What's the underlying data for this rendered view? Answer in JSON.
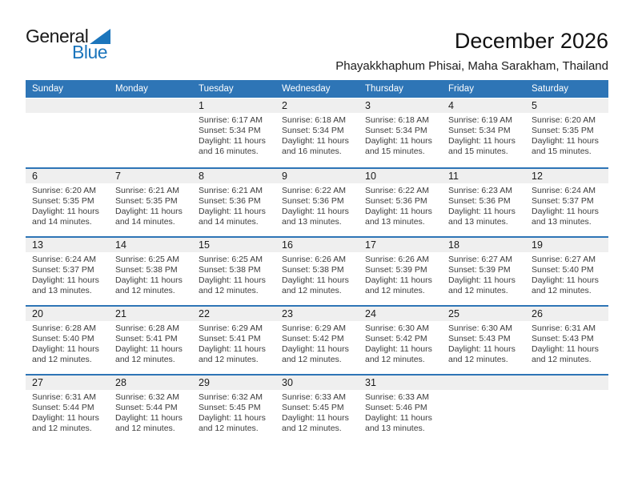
{
  "logo": {
    "part1": "General",
    "part2": "Blue"
  },
  "header": {
    "title": "December 2026",
    "subtitle": "Phayakkhaphum Phisai, Maha Sarakham, Thailand"
  },
  "weekdays": [
    "Sunday",
    "Monday",
    "Tuesday",
    "Wednesday",
    "Thursday",
    "Friday",
    "Saturday"
  ],
  "colors": {
    "header_bg": "#2E75B6",
    "row_divider": "#2E75B6",
    "date_strip_bg": "#EFEFEF",
    "logo_blue": "#1B75BC",
    "detail_text": "#3C3C3C"
  },
  "weeks": [
    {
      "cells": [
        {
          "day": "",
          "sunrise": "",
          "sunset": "",
          "daylight": ""
        },
        {
          "day": "",
          "sunrise": "",
          "sunset": "",
          "daylight": ""
        },
        {
          "day": "1",
          "sunrise": "Sunrise: 6:17 AM",
          "sunset": "Sunset: 5:34 PM",
          "daylight": "Daylight: 11 hours and 16 minutes."
        },
        {
          "day": "2",
          "sunrise": "Sunrise: 6:18 AM",
          "sunset": "Sunset: 5:34 PM",
          "daylight": "Daylight: 11 hours and 16 minutes."
        },
        {
          "day": "3",
          "sunrise": "Sunrise: 6:18 AM",
          "sunset": "Sunset: 5:34 PM",
          "daylight": "Daylight: 11 hours and 15 minutes."
        },
        {
          "day": "4",
          "sunrise": "Sunrise: 6:19 AM",
          "sunset": "Sunset: 5:34 PM",
          "daylight": "Daylight: 11 hours and 15 minutes."
        },
        {
          "day": "5",
          "sunrise": "Sunrise: 6:20 AM",
          "sunset": "Sunset: 5:35 PM",
          "daylight": "Daylight: 11 hours and 15 minutes."
        }
      ]
    },
    {
      "cells": [
        {
          "day": "6",
          "sunrise": "Sunrise: 6:20 AM",
          "sunset": "Sunset: 5:35 PM",
          "daylight": "Daylight: 11 hours and 14 minutes."
        },
        {
          "day": "7",
          "sunrise": "Sunrise: 6:21 AM",
          "sunset": "Sunset: 5:35 PM",
          "daylight": "Daylight: 11 hours and 14 minutes."
        },
        {
          "day": "8",
          "sunrise": "Sunrise: 6:21 AM",
          "sunset": "Sunset: 5:36 PM",
          "daylight": "Daylight: 11 hours and 14 minutes."
        },
        {
          "day": "9",
          "sunrise": "Sunrise: 6:22 AM",
          "sunset": "Sunset: 5:36 PM",
          "daylight": "Daylight: 11 hours and 13 minutes."
        },
        {
          "day": "10",
          "sunrise": "Sunrise: 6:22 AM",
          "sunset": "Sunset: 5:36 PM",
          "daylight": "Daylight: 11 hours and 13 minutes."
        },
        {
          "day": "11",
          "sunrise": "Sunrise: 6:23 AM",
          "sunset": "Sunset: 5:36 PM",
          "daylight": "Daylight: 11 hours and 13 minutes."
        },
        {
          "day": "12",
          "sunrise": "Sunrise: 6:24 AM",
          "sunset": "Sunset: 5:37 PM",
          "daylight": "Daylight: 11 hours and 13 minutes."
        }
      ]
    },
    {
      "cells": [
        {
          "day": "13",
          "sunrise": "Sunrise: 6:24 AM",
          "sunset": "Sunset: 5:37 PM",
          "daylight": "Daylight: 11 hours and 13 minutes."
        },
        {
          "day": "14",
          "sunrise": "Sunrise: 6:25 AM",
          "sunset": "Sunset: 5:38 PM",
          "daylight": "Daylight: 11 hours and 12 minutes."
        },
        {
          "day": "15",
          "sunrise": "Sunrise: 6:25 AM",
          "sunset": "Sunset: 5:38 PM",
          "daylight": "Daylight: 11 hours and 12 minutes."
        },
        {
          "day": "16",
          "sunrise": "Sunrise: 6:26 AM",
          "sunset": "Sunset: 5:38 PM",
          "daylight": "Daylight: 11 hours and 12 minutes."
        },
        {
          "day": "17",
          "sunrise": "Sunrise: 6:26 AM",
          "sunset": "Sunset: 5:39 PM",
          "daylight": "Daylight: 11 hours and 12 minutes."
        },
        {
          "day": "18",
          "sunrise": "Sunrise: 6:27 AM",
          "sunset": "Sunset: 5:39 PM",
          "daylight": "Daylight: 11 hours and 12 minutes."
        },
        {
          "day": "19",
          "sunrise": "Sunrise: 6:27 AM",
          "sunset": "Sunset: 5:40 PM",
          "daylight": "Daylight: 11 hours and 12 minutes."
        }
      ]
    },
    {
      "cells": [
        {
          "day": "20",
          "sunrise": "Sunrise: 6:28 AM",
          "sunset": "Sunset: 5:40 PM",
          "daylight": "Daylight: 11 hours and 12 minutes."
        },
        {
          "day": "21",
          "sunrise": "Sunrise: 6:28 AM",
          "sunset": "Sunset: 5:41 PM",
          "daylight": "Daylight: 11 hours and 12 minutes."
        },
        {
          "day": "22",
          "sunrise": "Sunrise: 6:29 AM",
          "sunset": "Sunset: 5:41 PM",
          "daylight": "Daylight: 11 hours and 12 minutes."
        },
        {
          "day": "23",
          "sunrise": "Sunrise: 6:29 AM",
          "sunset": "Sunset: 5:42 PM",
          "daylight": "Daylight: 11 hours and 12 minutes."
        },
        {
          "day": "24",
          "sunrise": "Sunrise: 6:30 AM",
          "sunset": "Sunset: 5:42 PM",
          "daylight": "Daylight: 11 hours and 12 minutes."
        },
        {
          "day": "25",
          "sunrise": "Sunrise: 6:30 AM",
          "sunset": "Sunset: 5:43 PM",
          "daylight": "Daylight: 11 hours and 12 minutes."
        },
        {
          "day": "26",
          "sunrise": "Sunrise: 6:31 AM",
          "sunset": "Sunset: 5:43 PM",
          "daylight": "Daylight: 11 hours and 12 minutes."
        }
      ]
    },
    {
      "cells": [
        {
          "day": "27",
          "sunrise": "Sunrise: 6:31 AM",
          "sunset": "Sunset: 5:44 PM",
          "daylight": "Daylight: 11 hours and 12 minutes."
        },
        {
          "day": "28",
          "sunrise": "Sunrise: 6:32 AM",
          "sunset": "Sunset: 5:44 PM",
          "daylight": "Daylight: 11 hours and 12 minutes."
        },
        {
          "day": "29",
          "sunrise": "Sunrise: 6:32 AM",
          "sunset": "Sunset: 5:45 PM",
          "daylight": "Daylight: 11 hours and 12 minutes."
        },
        {
          "day": "30",
          "sunrise": "Sunrise: 6:33 AM",
          "sunset": "Sunset: 5:45 PM",
          "daylight": "Daylight: 11 hours and 12 minutes."
        },
        {
          "day": "31",
          "sunrise": "Sunrise: 6:33 AM",
          "sunset": "Sunset: 5:46 PM",
          "daylight": "Daylight: 11 hours and 13 minutes."
        },
        {
          "day": "",
          "sunrise": "",
          "sunset": "",
          "daylight": ""
        },
        {
          "day": "",
          "sunrise": "",
          "sunset": "",
          "daylight": ""
        }
      ]
    }
  ]
}
